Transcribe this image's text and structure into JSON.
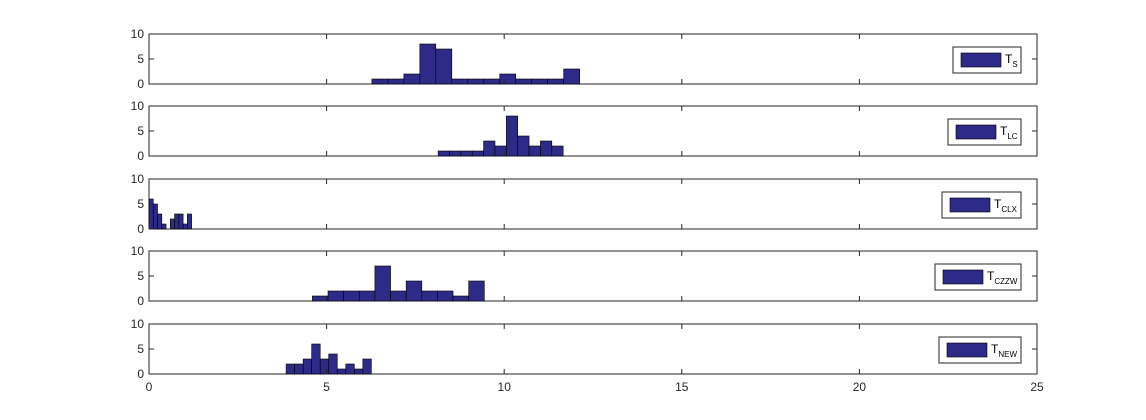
{
  "chart_data": [
    {
      "type": "bar",
      "legend": {
        "base": "T",
        "sub": "S",
        "position": "top-right"
      },
      "xlim": [
        0,
        25
      ],
      "ylim": [
        0,
        10
      ],
      "yticks": [
        "0",
        "5",
        "10"
      ],
      "xticks": [],
      "bin_width": 0.45,
      "bars": [
        [
          6.5,
          1
        ],
        [
          6.95,
          1
        ],
        [
          7.4,
          2
        ],
        [
          7.85,
          8
        ],
        [
          8.3,
          7
        ],
        [
          8.75,
          1
        ],
        [
          9.2,
          1
        ],
        [
          9.65,
          1
        ],
        [
          10.1,
          2
        ],
        [
          10.55,
          1
        ],
        [
          11.0,
          1
        ],
        [
          11.45,
          1
        ],
        [
          11.9,
          3
        ]
      ],
      "bar_color": "#2e2a87"
    },
    {
      "type": "bar",
      "legend": {
        "base": "T",
        "sub": "LC",
        "position": "top-right"
      },
      "xlim": [
        0,
        25
      ],
      "ylim": [
        0,
        10
      ],
      "yticks": [
        "0",
        "5",
        "10"
      ],
      "xticks": [],
      "bin_width": 0.32,
      "bars": [
        [
          8.3,
          1
        ],
        [
          8.62,
          1
        ],
        [
          8.94,
          1
        ],
        [
          9.26,
          1
        ],
        [
          9.58,
          3
        ],
        [
          9.9,
          2
        ],
        [
          10.22,
          8
        ],
        [
          10.54,
          4
        ],
        [
          10.86,
          2
        ],
        [
          11.18,
          3
        ],
        [
          11.5,
          2
        ]
      ],
      "bar_color": "#2e2a87"
    },
    {
      "type": "bar",
      "legend": {
        "base": "T",
        "sub": "CLX",
        "position": "top-right"
      },
      "xlim": [
        0,
        25
      ],
      "ylim": [
        0,
        10
      ],
      "yticks": [
        "0",
        "5",
        "10"
      ],
      "xticks": [],
      "bin_width": 0.12,
      "bars": [
        [
          0.06,
          6
        ],
        [
          0.18,
          5
        ],
        [
          0.3,
          3
        ],
        [
          0.42,
          1
        ],
        [
          0.66,
          2
        ],
        [
          0.78,
          3
        ],
        [
          0.9,
          3
        ],
        [
          1.02,
          1
        ],
        [
          1.14,
          3
        ]
      ],
      "bar_color": "#2e2a87"
    },
    {
      "type": "bar",
      "legend": {
        "base": "T",
        "sub": "CZZW",
        "position": "top-right"
      },
      "xlim": [
        0,
        25
      ],
      "ylim": [
        0,
        10
      ],
      "yticks": [
        "0",
        "5",
        "10"
      ],
      "xticks": [],
      "bin_width": 0.44,
      "bars": [
        [
          4.82,
          1
        ],
        [
          5.26,
          2
        ],
        [
          5.7,
          2
        ],
        [
          6.14,
          2
        ],
        [
          6.58,
          7
        ],
        [
          7.02,
          2
        ],
        [
          7.46,
          4
        ],
        [
          7.9,
          2
        ],
        [
          8.34,
          2
        ],
        [
          8.78,
          1
        ],
        [
          9.22,
          4
        ]
      ],
      "bar_color": "#2e2a87"
    },
    {
      "type": "bar",
      "legend": {
        "base": "T",
        "sub": "NEW",
        "position": "top-right"
      },
      "xlim": [
        0,
        25
      ],
      "ylim": [
        0,
        10
      ],
      "yticks": [
        "0",
        "5",
        "10"
      ],
      "xticks": [
        "0",
        "5",
        "10",
        "15",
        "20",
        "25"
      ],
      "bin_width": 0.24,
      "bars": [
        [
          3.98,
          2
        ],
        [
          4.22,
          2
        ],
        [
          4.46,
          3
        ],
        [
          4.7,
          6
        ],
        [
          4.94,
          3
        ],
        [
          5.18,
          4
        ],
        [
          5.42,
          1
        ],
        [
          5.66,
          2
        ],
        [
          5.9,
          1
        ],
        [
          6.14,
          3
        ]
      ],
      "bar_color": "#2e2a87"
    }
  ]
}
